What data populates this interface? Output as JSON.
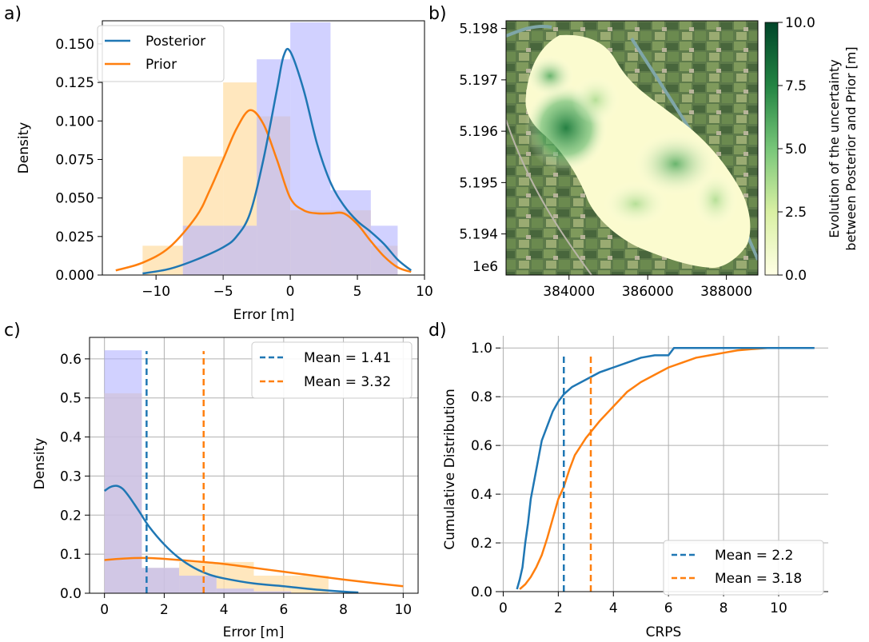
{
  "colors": {
    "blue": "#1f77b4",
    "orange": "#ff7f0e",
    "hist_blue": "#b3b3ff",
    "hist_orange": "#ffdfa8",
    "hist_overlap": "#c8b1bf"
  },
  "chart_data": [
    {
      "panel": "a)",
      "type": "histogram+kde",
      "xlabel": "Error [m]",
      "ylabel": "Density",
      "xlim": [
        -14,
        10
      ],
      "ylim": [
        0,
        0.165
      ],
      "xticks": [
        "−10",
        "−5",
        "0",
        "5",
        "10"
      ],
      "xtick_values": [
        -10,
        -5,
        0,
        5,
        10
      ],
      "yticks": [
        "0.000",
        "0.025",
        "0.050",
        "0.075",
        "0.100",
        "0.125",
        "0.150"
      ],
      "ytick_values": [
        0,
        0.025,
        0.05,
        0.075,
        0.1,
        0.125,
        0.15
      ],
      "legend": {
        "placement": "top-left",
        "entries": [
          "Posterior",
          "Prior"
        ]
      },
      "hist_bin_edges": [
        -11,
        -8,
        -5,
        -2.5,
        0,
        3,
        6,
        8
      ],
      "hist_posterior": [
        0,
        0.032,
        0.032,
        0.14,
        0.164,
        0.055,
        0.032
      ],
      "hist_prior": [
        0.019,
        0.077,
        0.125,
        0.103,
        0.042,
        0.042,
        0.019
      ],
      "series": [
        {
          "name": "Posterior",
          "x": [
            -11,
            -9,
            -7,
            -5,
            -4,
            -3,
            -2,
            -1,
            -0.5,
            0,
            1,
            2,
            3,
            4,
            5,
            6,
            7,
            8,
            9
          ],
          "y": [
            0.001,
            0.004,
            0.01,
            0.018,
            0.025,
            0.04,
            0.075,
            0.12,
            0.142,
            0.145,
            0.12,
            0.085,
            0.06,
            0.045,
            0.035,
            0.028,
            0.02,
            0.01,
            0.003
          ]
        },
        {
          "name": "Prior",
          "x": [
            -13,
            -11,
            -9,
            -7,
            -6,
            -5,
            -4,
            -3,
            -2,
            -1,
            0,
            1,
            2,
            3,
            4,
            5,
            6,
            7,
            8,
            9
          ],
          "y": [
            0.003,
            0.008,
            0.018,
            0.038,
            0.055,
            0.075,
            0.095,
            0.107,
            0.098,
            0.075,
            0.05,
            0.042,
            0.04,
            0.04,
            0.04,
            0.033,
            0.022,
            0.012,
            0.005,
            0.002
          ]
        }
      ]
    },
    {
      "panel": "b)",
      "type": "heatmap",
      "xticks": [
        "384000",
        "386000",
        "388000"
      ],
      "xtick_values": [
        384000,
        386000,
        388000
      ],
      "xlim": [
        382400,
        388800
      ],
      "yticks": [
        "5.198",
        "5.197",
        "5.196",
        "5.195",
        "5.194"
      ],
      "ytick_values": [
        5.198,
        5.197,
        5.196,
        5.195,
        5.194
      ],
      "ylim": [
        5.1932,
        5.19815
      ],
      "y_offset_label": "1e6",
      "colorbar": {
        "label_line1": "Evolution of the uncertainty",
        "label_line2": "between Posterior and Prior [m]",
        "ticks": [
          "10.0",
          "7.5",
          "5.0",
          "2.5",
          "0.0"
        ],
        "tick_values": [
          10,
          7.5,
          5,
          2.5,
          0
        ],
        "vmin": 0,
        "vmax": 10
      }
    },
    {
      "panel": "c)",
      "type": "histogram+kde",
      "xlabel": "Error [m]",
      "ylabel": "Density",
      "xlim": [
        -0.5,
        10.5
      ],
      "ylim": [
        0,
        0.655
      ],
      "xticks": [
        "0",
        "2",
        "4",
        "6",
        "8",
        "10"
      ],
      "xtick_values": [
        0,
        2,
        4,
        6,
        8,
        10
      ],
      "yticks": [
        "0.0",
        "0.1",
        "0.2",
        "0.3",
        "0.4",
        "0.5",
        "0.6"
      ],
      "ytick_values": [
        0,
        0.1,
        0.2,
        0.3,
        0.4,
        0.5,
        0.6
      ],
      "grid": true,
      "legend": {
        "placement": "top-right",
        "entries": [
          "Mean = 1.41",
          "Mean = 3.32"
        ]
      },
      "hist_bin_edges": [
        0,
        1.25,
        2.5,
        3.75,
        5,
        6.25,
        7.5
      ],
      "hist_posterior": [
        0.622,
        0.065,
        0.045,
        0.012,
        0.005,
        0
      ],
      "hist_prior": [
        0.512,
        0.065,
        0.08,
        0.08,
        0.045,
        0.045
      ],
      "means": [
        {
          "name": "Mean = 1.41",
          "value": 1.41,
          "top": 0.62
        },
        {
          "name": "Mean = 3.32",
          "value": 3.32,
          "top": 0.62
        }
      ],
      "series": [
        {
          "name": "Posterior",
          "x": [
            0,
            0.2,
            0.4,
            0.6,
            0.8,
            1.0,
            1.2,
            1.5,
            2,
            2.5,
            3,
            3.5,
            4,
            5,
            6,
            7,
            8,
            8.5
          ],
          "y": [
            0.262,
            0.272,
            0.275,
            0.268,
            0.25,
            0.228,
            0.205,
            0.17,
            0.125,
            0.09,
            0.065,
            0.048,
            0.038,
            0.025,
            0.018,
            0.01,
            0.004,
            0.002
          ]
        },
        {
          "name": "Prior",
          "x": [
            0,
            0.5,
            1,
            1.5,
            2,
            3,
            4,
            5,
            6,
            7,
            8,
            9,
            10
          ],
          "y": [
            0.085,
            0.088,
            0.09,
            0.09,
            0.088,
            0.082,
            0.075,
            0.065,
            0.055,
            0.045,
            0.035,
            0.026,
            0.018
          ]
        }
      ]
    },
    {
      "panel": "d)",
      "type": "line",
      "xlabel": "CRPS",
      "ylabel": "Cumulative Distribution",
      "xlim": [
        -0.1,
        11.8
      ],
      "ylim": [
        0,
        1.05
      ],
      "xticks": [
        "0",
        "2",
        "4",
        "6",
        "8",
        "10"
      ],
      "xtick_values": [
        0,
        2,
        4,
        6,
        8,
        10
      ],
      "yticks": [
        "0.0",
        "0.2",
        "0.4",
        "0.6",
        "0.8",
        "1.0"
      ],
      "ytick_values": [
        0,
        0.2,
        0.4,
        0.6,
        0.8,
        1.0
      ],
      "grid": true,
      "legend": {
        "placement": "bottom-right",
        "entries": [
          "Mean = 2.2",
          "Mean = 3.18"
        ]
      },
      "means": [
        {
          "name": "Mean = 2.2",
          "value": 2.2,
          "top": 0.98
        },
        {
          "name": "Mean = 3.18",
          "value": 3.18,
          "top": 0.98
        }
      ],
      "series": [
        {
          "name": "Posterior",
          "x": [
            0.5,
            0.6,
            0.7,
            0.8,
            0.9,
            1.0,
            1.2,
            1.4,
            1.6,
            1.8,
            2.0,
            2.2,
            2.5,
            3.0,
            3.5,
            4.0,
            4.5,
            5.0,
            5.5,
            6.0,
            6.2,
            7.0,
            8.0,
            9.0,
            10.0,
            11.3
          ],
          "y": [
            0.01,
            0.05,
            0.1,
            0.2,
            0.28,
            0.38,
            0.5,
            0.62,
            0.68,
            0.74,
            0.78,
            0.81,
            0.84,
            0.87,
            0.9,
            0.92,
            0.94,
            0.96,
            0.97,
            0.97,
            1.0,
            1.0,
            1.0,
            1.0,
            1.0,
            1.0
          ]
        },
        {
          "name": "Prior",
          "x": [
            0.6,
            0.8,
            1.0,
            1.2,
            1.4,
            1.6,
            1.8,
            2.0,
            2.2,
            2.4,
            2.6,
            3.0,
            3.5,
            4.0,
            4.5,
            5.0,
            5.5,
            6.0,
            6.5,
            7.0,
            7.5,
            8.0,
            8.5,
            9.0,
            9.6
          ],
          "y": [
            0.01,
            0.03,
            0.06,
            0.1,
            0.15,
            0.22,
            0.3,
            0.38,
            0.43,
            0.5,
            0.56,
            0.63,
            0.7,
            0.76,
            0.82,
            0.86,
            0.89,
            0.92,
            0.94,
            0.96,
            0.97,
            0.98,
            0.99,
            0.995,
            1.0
          ]
        }
      ]
    }
  ]
}
